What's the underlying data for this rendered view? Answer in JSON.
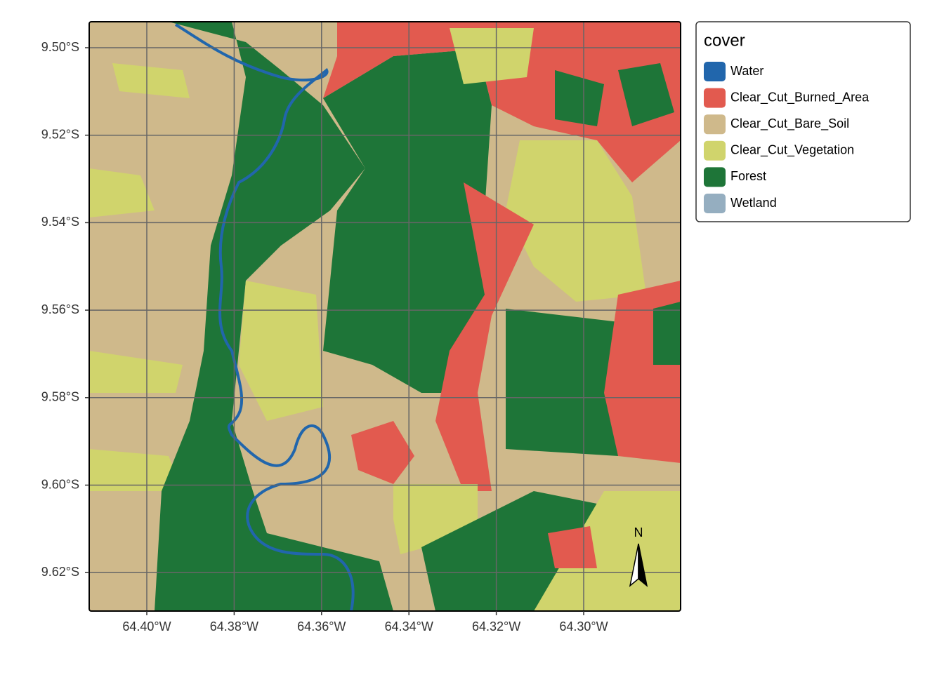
{
  "map": {
    "x_labels": [
      "64.40°W",
      "64.38°W",
      "64.36°W",
      "64.34°W",
      "64.32°W",
      "64.30°W"
    ],
    "y_labels": [
      "9.50°S",
      "9.52°S",
      "9.54°S",
      "9.56°S",
      "9.58°S",
      "9.60°S",
      "9.62°S"
    ],
    "legend": {
      "title": "cover",
      "items": [
        {
          "label": "Water",
          "color": "#2166ac"
        },
        {
          "label": "Clear_Cut_Burned_Area",
          "color": "#e25a4f"
        },
        {
          "label": "Clear_Cut_Bare_Soil",
          "color": "#cfb98b"
        },
        {
          "label": "Clear_Cut_Vegetation",
          "color": "#d0d46c"
        },
        {
          "label": "Forest",
          "color": "#1e7538"
        },
        {
          "label": "Wetland",
          "color": "#95aec0"
        }
      ]
    },
    "north_arrow": "N"
  }
}
